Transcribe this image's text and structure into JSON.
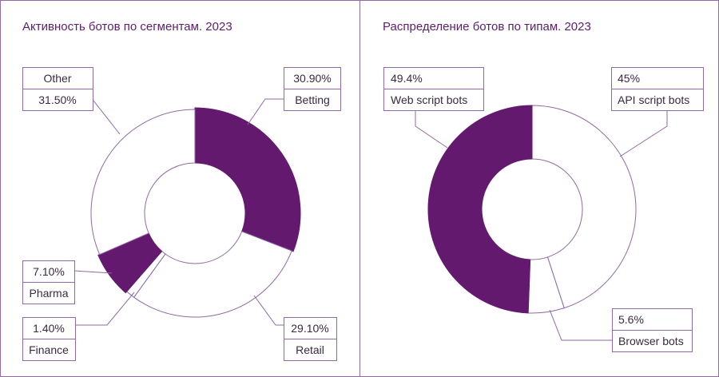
{
  "chart_data": [
    {
      "type": "pie",
      "variant": "donut",
      "title": "Активность ботов по сегментам. 2023",
      "categories": [
        "Betting",
        "Retail",
        "Finance",
        "Pharma",
        "Other"
      ],
      "values": [
        30.9,
        29.1,
        1.4,
        7.1,
        31.5
      ],
      "value_labels": [
        "30.90%",
        "29.10%",
        "1.40%",
        "7.10%",
        "31.50%"
      ],
      "highlighted": [
        "Betting",
        "Pharma"
      ]
    },
    {
      "type": "pie",
      "variant": "donut",
      "title": "Распределение ботов по типам. 2023",
      "categories": [
        "API script bots",
        "Browser bots",
        "Web script bots"
      ],
      "values": [
        45,
        5.6,
        49.4
      ],
      "value_labels": [
        "45%",
        "5.6%",
        "49.4%"
      ],
      "highlighted": [
        "Web script bots"
      ]
    }
  ],
  "colors": {
    "accent": "#631a6e",
    "line": "#8f6aa3",
    "text": "#3a2a40",
    "title": "#5b1f6e"
  }
}
